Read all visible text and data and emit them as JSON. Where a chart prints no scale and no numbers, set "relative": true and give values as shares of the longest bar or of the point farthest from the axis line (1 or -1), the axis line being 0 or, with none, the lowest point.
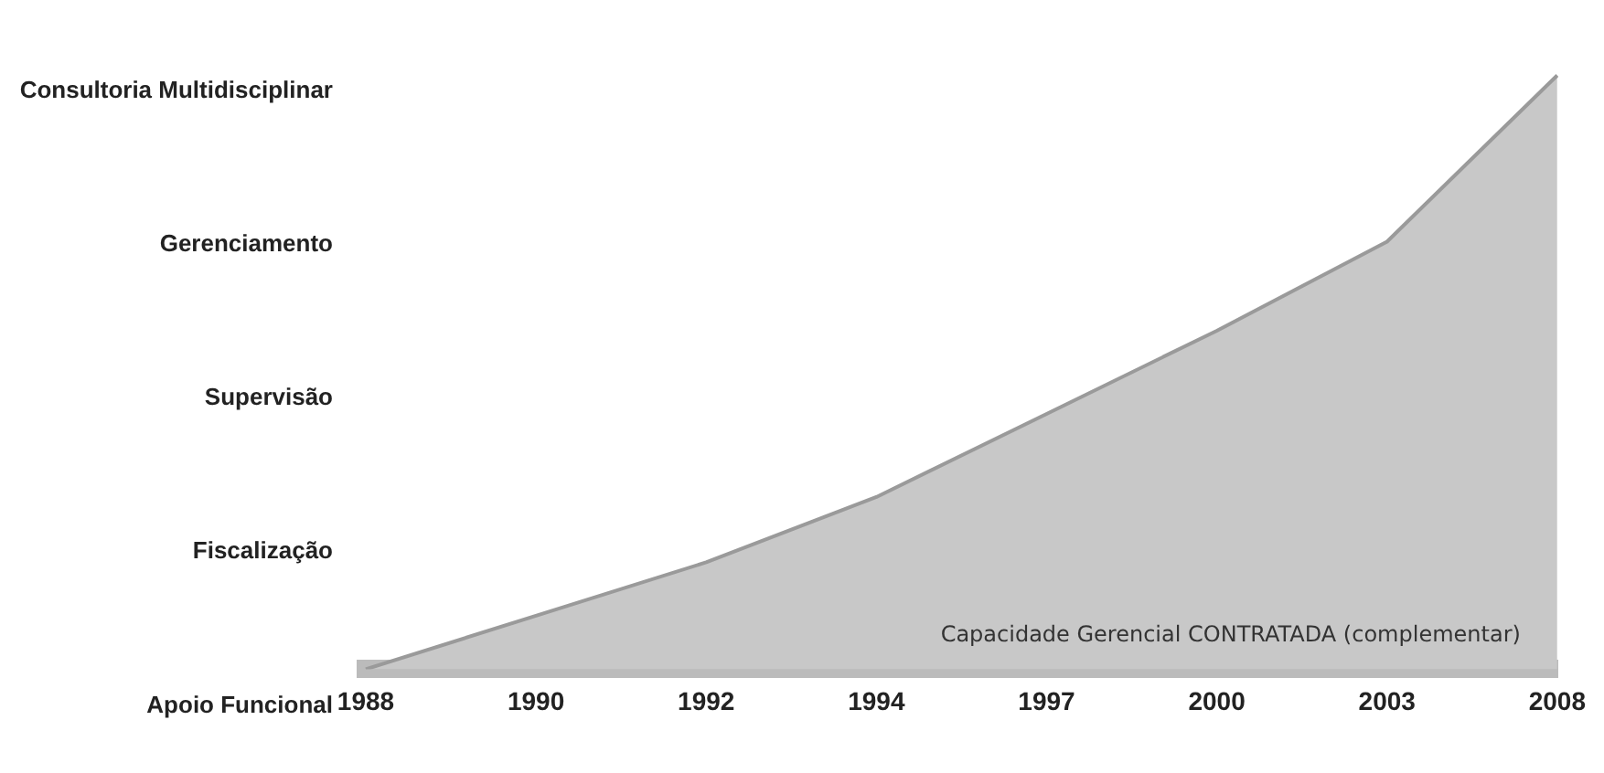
{
  "chart_data": {
    "type": "area",
    "relative": true,
    "categories": [
      "1988",
      "1990",
      "1992",
      "1994",
      "1997",
      "2000",
      "2003",
      "2008"
    ],
    "series": [
      {
        "color": "#c8c8c8",
        "values": [
          0,
          0.09,
          0.18,
          0.29,
          0.43,
          0.57,
          0.72,
          1
        ]
      }
    ],
    "annotations": [
      "Apoio Funcional",
      "Fiscalização",
      "Supervisão",
      "Gerenciamento",
      "Consultoria Multidisciplinar",
      "Capacidade Gerencial CONTRATADA (complementar)"
    ],
    "grid": false,
    "legend": false
  }
}
